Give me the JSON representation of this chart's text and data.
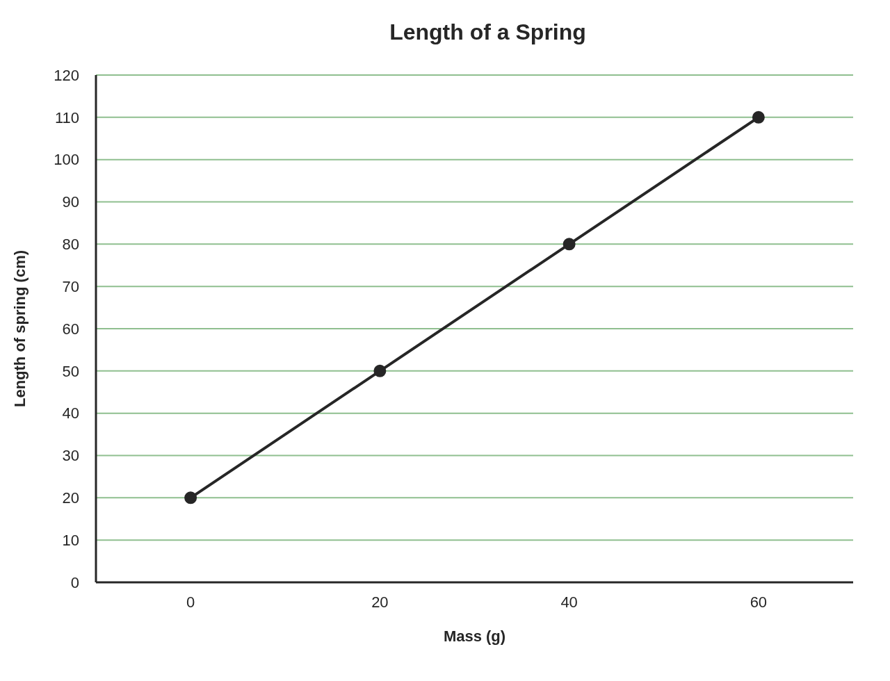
{
  "chart_data": {
    "type": "line",
    "title": "Length of a Spring",
    "xlabel": "Mass (g)",
    "ylabel": "Length of spring (cm)",
    "x": [
      0,
      20,
      40,
      60
    ],
    "series": [
      {
        "color": "#262626",
        "values": [
          20,
          50,
          80,
          110
        ]
      }
    ],
    "xlim": [
      -10,
      70
    ],
    "xticks": [
      0,
      20,
      40,
      60
    ],
    "ylim": [
      0,
      120
    ],
    "yticks": [
      0,
      10,
      20,
      30,
      40,
      50,
      60,
      70,
      80,
      90,
      100,
      110,
      120
    ],
    "grid": "y",
    "marker": "circle",
    "line_style": "solid"
  }
}
